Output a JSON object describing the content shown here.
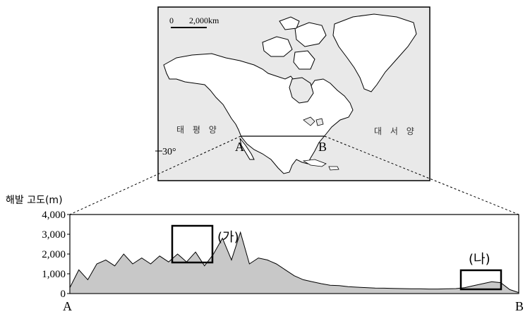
{
  "map": {
    "scale_zero": "0",
    "scale_label": "2,000km",
    "ocean_left": "태 평 양",
    "ocean_right": "대 서 양",
    "latitude_label": "30°",
    "point_a": "A",
    "point_b": "B"
  },
  "profile": {
    "ylabel": "해발 고도(m)",
    "ylim": [
      0,
      4000
    ],
    "y_ticks": [
      "4,000",
      "3,000",
      "2,000",
      "1,000",
      "0"
    ],
    "x_start_label": "A",
    "x_end_label": "B",
    "box_ga_label": "(가)",
    "box_na_label": "(나)"
  },
  "chart_data": {
    "type": "area",
    "ylabel": "해발 고도(m)",
    "ylim": [
      0,
      4000
    ],
    "x_label_start": "A",
    "x_label_end": "B",
    "note": "",
    "x": [
      0,
      2,
      4,
      6,
      8,
      10,
      12,
      14,
      16,
      18,
      20,
      22,
      24,
      26,
      28,
      30,
      32,
      34,
      36,
      38,
      40,
      42,
      44,
      46,
      48,
      50,
      52,
      54,
      56,
      58,
      60,
      62,
      64,
      66,
      68,
      70,
      72,
      74,
      76,
      78,
      80,
      82,
      84,
      86,
      88,
      90,
      92,
      94,
      96,
      98,
      100
    ],
    "y": [
      300,
      1200,
      700,
      1500,
      1700,
      1400,
      2000,
      1500,
      1800,
      1500,
      1900,
      1600,
      2000,
      1600,
      2100,
      1400,
      2000,
      2800,
      1700,
      3100,
      1500,
      1800,
      1700,
      1500,
      1200,
      900,
      700,
      600,
      500,
      420,
      400,
      350,
      320,
      300,
      280,
      270,
      260,
      250,
      240,
      240,
      230,
      230,
      240,
      250,
      300,
      400,
      500,
      600,
      550,
      200,
      50
    ]
  }
}
